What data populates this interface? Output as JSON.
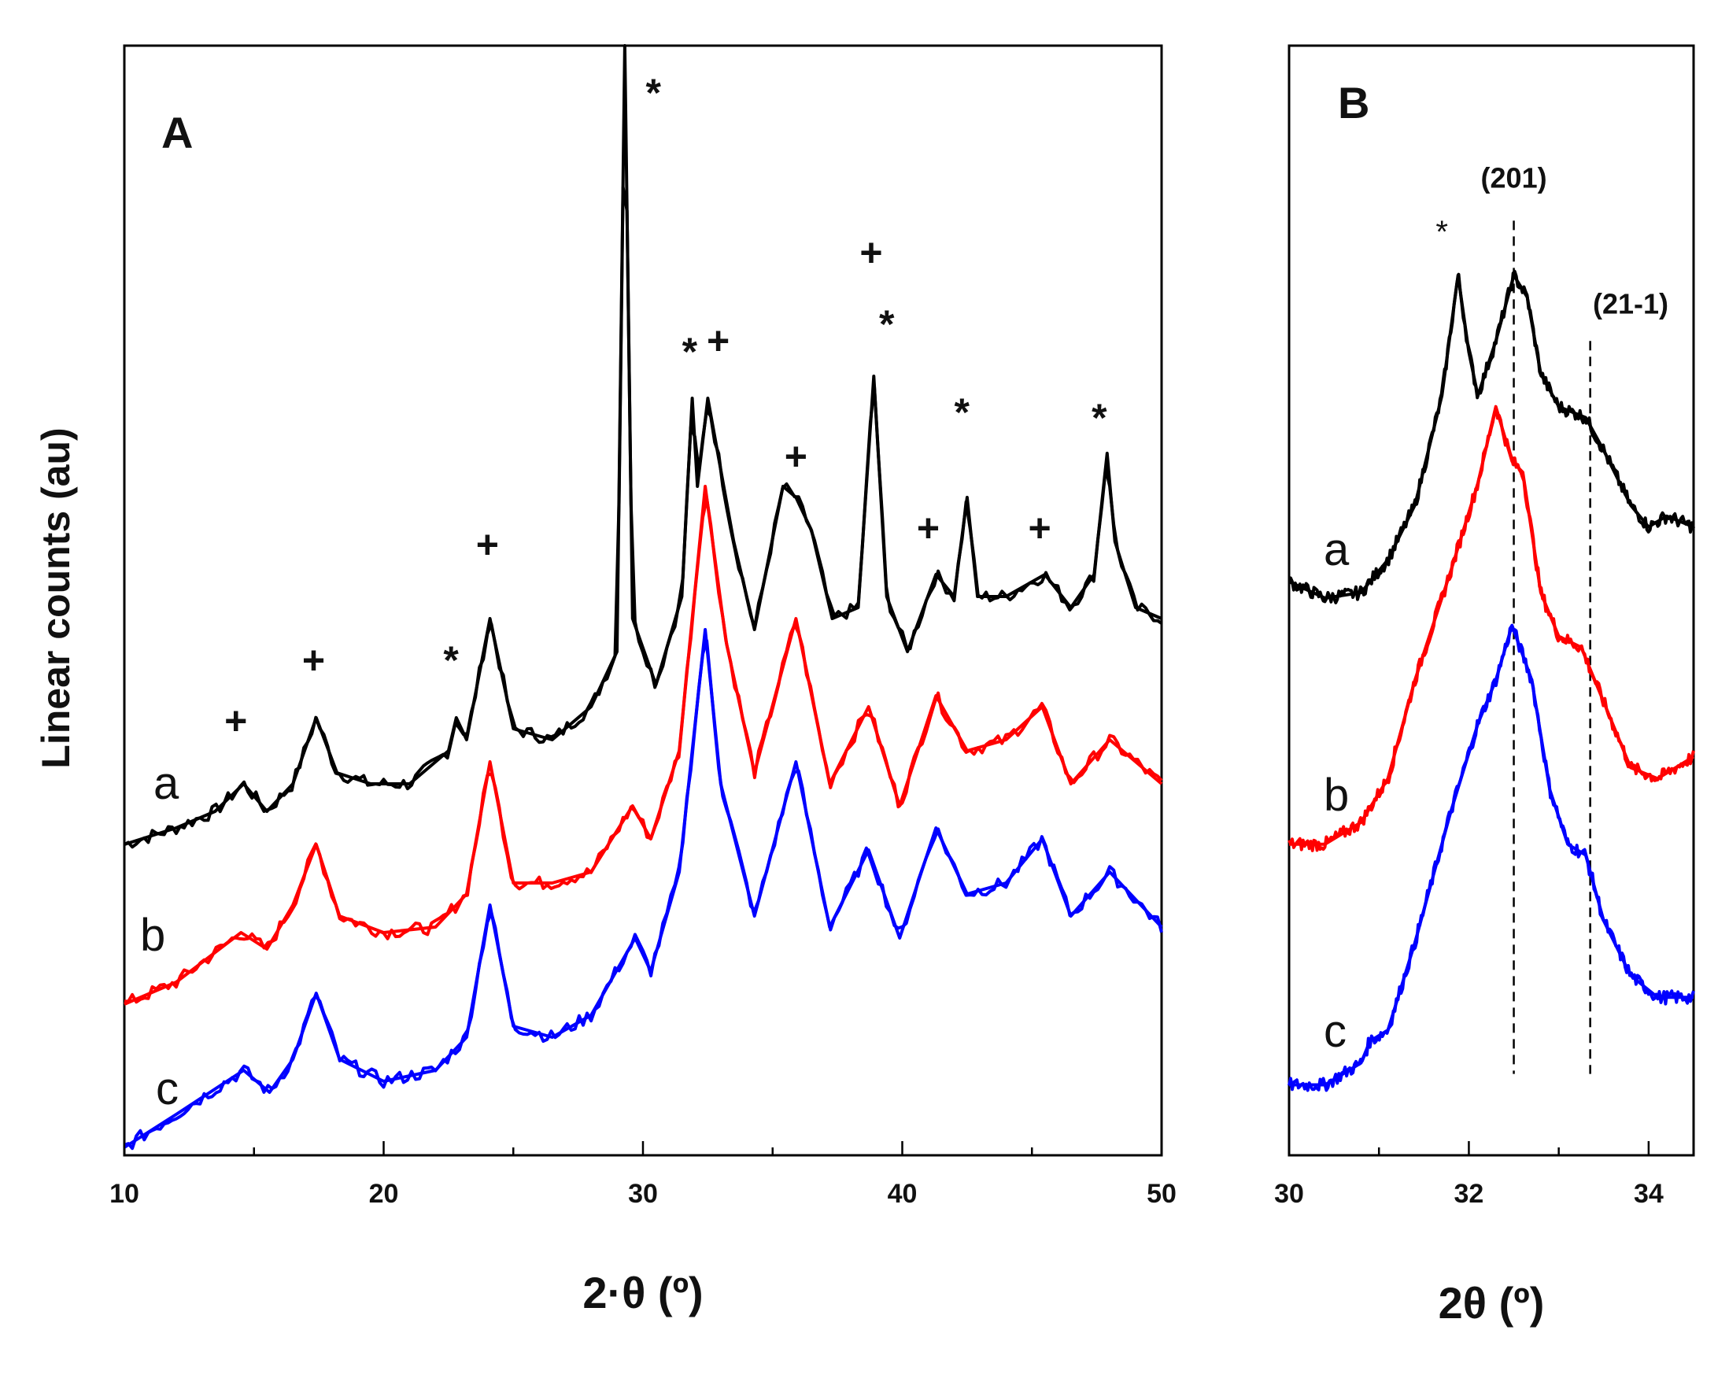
{
  "chart_data": [
    {
      "panel": "A",
      "type": "line",
      "xlabel": "2·θ (º)",
      "ylabel": "Linear counts (au)",
      "xlim": [
        10,
        50
      ],
      "ylim": [
        0,
        1
      ],
      "xticks": [
        10,
        20,
        30,
        40,
        50
      ],
      "series": [
        {
          "name": "a",
          "color": "#000000",
          "baseline": 0.275,
          "slope": 0.0,
          "points": [
            [
              10,
              0.275
            ],
            [
              12,
              0.29
            ],
            [
              13.5,
              0.305
            ],
            [
              14.6,
              0.33
            ],
            [
              15.5,
              0.305
            ],
            [
              16.5,
              0.33
            ],
            [
              17.4,
              0.39
            ],
            [
              18.2,
              0.34
            ],
            [
              19.5,
              0.33
            ],
            [
              21,
              0.33
            ],
            [
              22.5,
              0.36
            ],
            [
              22.8,
              0.39
            ],
            [
              23.2,
              0.37
            ],
            [
              24.1,
              0.48
            ],
            [
              25,
              0.38
            ],
            [
              26.5,
              0.37
            ],
            [
              28,
              0.4
            ],
            [
              29.0,
              0.45
            ],
            [
              29.3,
              1.0
            ],
            [
              29.6,
              0.48
            ],
            [
              30.5,
              0.42
            ],
            [
              31.5,
              0.5
            ],
            [
              31.9,
              0.68
            ],
            [
              32.1,
              0.6
            ],
            [
              32.5,
              0.68
            ],
            [
              33.5,
              0.55
            ],
            [
              34.3,
              0.47
            ],
            [
              35.4,
              0.6
            ],
            [
              35.9,
              0.59
            ],
            [
              36.5,
              0.56
            ],
            [
              37.3,
              0.48
            ],
            [
              38.3,
              0.49
            ],
            [
              38.9,
              0.7
            ],
            [
              39.4,
              0.5
            ],
            [
              40.2,
              0.45
            ],
            [
              41.3,
              0.52
            ],
            [
              42.0,
              0.5
            ],
            [
              42.5,
              0.59
            ],
            [
              42.9,
              0.5
            ],
            [
              44,
              0.5
            ],
            [
              45.5,
              0.52
            ],
            [
              46.5,
              0.49
            ],
            [
              47.4,
              0.52
            ],
            [
              47.9,
              0.63
            ],
            [
              48.2,
              0.55
            ],
            [
              49,
              0.49
            ],
            [
              50,
              0.48
            ]
          ]
        },
        {
          "name": "b",
          "color": "#ff0000",
          "points": [
            [
              10,
              0.13
            ],
            [
              12,
              0.15
            ],
            [
              14.5,
              0.195
            ],
            [
              15.5,
              0.18
            ],
            [
              16.5,
              0.22
            ],
            [
              17.4,
              0.275
            ],
            [
              18.3,
              0.21
            ],
            [
              20,
              0.195
            ],
            [
              22,
              0.2
            ],
            [
              23.2,
              0.23
            ],
            [
              24.1,
              0.35
            ],
            [
              25,
              0.24
            ],
            [
              26.5,
              0.24
            ],
            [
              28,
              0.25
            ],
            [
              29.6,
              0.31
            ],
            [
              30.3,
              0.28
            ],
            [
              31.4,
              0.36
            ],
            [
              32.4,
              0.6
            ],
            [
              33.2,
              0.46
            ],
            [
              34.3,
              0.34
            ],
            [
              35.9,
              0.48
            ],
            [
              37.2,
              0.33
            ],
            [
              38.7,
              0.4
            ],
            [
              39.9,
              0.31
            ],
            [
              41.3,
              0.41
            ],
            [
              42.5,
              0.36
            ],
            [
              44,
              0.37
            ],
            [
              45.4,
              0.4
            ],
            [
              46.5,
              0.33
            ],
            [
              48,
              0.37
            ],
            [
              50,
              0.33
            ]
          ]
        },
        {
          "name": "c",
          "color": "#0000ff",
          "points": [
            [
              10,
              0.0
            ],
            [
              12,
              0.03
            ],
            [
              14.6,
              0.07
            ],
            [
              15.6,
              0.05
            ],
            [
              16.5,
              0.08
            ],
            [
              17.4,
              0.14
            ],
            [
              18.3,
              0.08
            ],
            [
              20,
              0.06
            ],
            [
              22,
              0.07
            ],
            [
              23.2,
              0.1
            ],
            [
              24.1,
              0.22
            ],
            [
              25,
              0.11
            ],
            [
              26.5,
              0.1
            ],
            [
              28,
              0.12
            ],
            [
              29.7,
              0.19
            ],
            [
              30.3,
              0.16
            ],
            [
              31.4,
              0.25
            ],
            [
              32.4,
              0.47
            ],
            [
              33.0,
              0.33
            ],
            [
              34.3,
              0.21
            ],
            [
              35.9,
              0.35
            ],
            [
              37.2,
              0.2
            ],
            [
              38.7,
              0.27
            ],
            [
              39.9,
              0.19
            ],
            [
              41.3,
              0.29
            ],
            [
              42.5,
              0.23
            ],
            [
              44,
              0.24
            ],
            [
              45.4,
              0.28
            ],
            [
              46.5,
              0.21
            ],
            [
              48,
              0.25
            ],
            [
              50,
              0.2
            ]
          ]
        }
      ],
      "labels": [
        "a",
        "b",
        "c"
      ],
      "panel_label": "A",
      "annotations": [
        {
          "text": "+",
          "x": 14.3,
          "y": 0.375
        },
        {
          "text": "+",
          "x": 17.3,
          "y": 0.43
        },
        {
          "text": "*",
          "x": 22.6,
          "y": 0.43
        },
        {
          "text": "+",
          "x": 24.0,
          "y": 0.535
        },
        {
          "text": "*",
          "x": 30.4,
          "y": 0.945
        },
        {
          "text": "*",
          "x": 31.8,
          "y": 0.71
        },
        {
          "text": "+",
          "x": 32.9,
          "y": 0.72
        },
        {
          "text": "+",
          "x": 35.9,
          "y": 0.615
        },
        {
          "text": "+",
          "x": 38.8,
          "y": 0.8
        },
        {
          "text": "*",
          "x": 39.4,
          "y": 0.735
        },
        {
          "text": "*",
          "x": 42.3,
          "y": 0.655
        },
        {
          "text": "+",
          "x": 41.0,
          "y": 0.55
        },
        {
          "text": "+",
          "x": 45.3,
          "y": 0.55
        },
        {
          "text": "*",
          "x": 47.6,
          "y": 0.65
        }
      ]
    },
    {
      "panel": "B",
      "type": "line",
      "xlabel": "2θ (º)",
      "xlim": [
        30,
        34.5
      ],
      "ylim": [
        0,
        1
      ],
      "xticks": [
        30,
        32,
        34
      ],
      "minor_xticks": [
        31,
        33
      ],
      "series": [
        {
          "name": "a",
          "color": "#000000",
          "points": [
            [
              30,
              0.51
            ],
            [
              30.4,
              0.495
            ],
            [
              30.8,
              0.5
            ],
            [
              31.1,
              0.53
            ],
            [
              31.4,
              0.58
            ],
            [
              31.7,
              0.68
            ],
            [
              31.88,
              0.79
            ],
            [
              32.0,
              0.72
            ],
            [
              32.1,
              0.68
            ],
            [
              32.3,
              0.73
            ],
            [
              32.5,
              0.79
            ],
            [
              32.65,
              0.77
            ],
            [
              32.8,
              0.7
            ],
            [
              33.0,
              0.67
            ],
            [
              33.3,
              0.66
            ],
            [
              33.5,
              0.63
            ],
            [
              33.8,
              0.58
            ],
            [
              34.0,
              0.56
            ],
            [
              34.2,
              0.57
            ],
            [
              34.5,
              0.56
            ]
          ]
        },
        {
          "name": "b",
          "color": "#ff0000",
          "points": [
            [
              30,
              0.27
            ],
            [
              30.4,
              0.27
            ],
            [
              30.8,
              0.29
            ],
            [
              31.1,
              0.33
            ],
            [
              31.4,
              0.42
            ],
            [
              31.8,
              0.52
            ],
            [
              32.1,
              0.6
            ],
            [
              32.3,
              0.67
            ],
            [
              32.48,
              0.62
            ],
            [
              32.6,
              0.61
            ],
            [
              32.8,
              0.5
            ],
            [
              33.0,
              0.46
            ],
            [
              33.25,
              0.45
            ],
            [
              33.5,
              0.4
            ],
            [
              33.8,
              0.34
            ],
            [
              34.1,
              0.33
            ],
            [
              34.3,
              0.34
            ],
            [
              34.5,
              0.35
            ]
          ]
        },
        {
          "name": "c",
          "color": "#0000ff",
          "points": [
            [
              30,
              0.05
            ],
            [
              30.4,
              0.05
            ],
            [
              30.8,
              0.07
            ],
            [
              30.9,
              0.09
            ],
            [
              31.1,
              0.1
            ],
            [
              31.4,
              0.18
            ],
            [
              31.8,
              0.3
            ],
            [
              32.1,
              0.38
            ],
            [
              32.3,
              0.42
            ],
            [
              32.48,
              0.47
            ],
            [
              32.7,
              0.42
            ],
            [
              32.9,
              0.32
            ],
            [
              33.1,
              0.27
            ],
            [
              33.3,
              0.26
            ],
            [
              33.5,
              0.2
            ],
            [
              33.8,
              0.15
            ],
            [
              34.1,
              0.13
            ],
            [
              34.5,
              0.13
            ]
          ]
        }
      ],
      "labels": [
        "a",
        "b",
        "c"
      ],
      "panel_label": "B",
      "annotations": [
        {
          "text": "(201)",
          "x": 32.5,
          "y": 0.87
        },
        {
          "text": "(21-1)",
          "x": 33.8,
          "y": 0.755
        },
        {
          "text": "*",
          "x": 31.7,
          "y": 0.82
        }
      ],
      "reference_lines": [
        32.5,
        33.35
      ]
    }
  ]
}
